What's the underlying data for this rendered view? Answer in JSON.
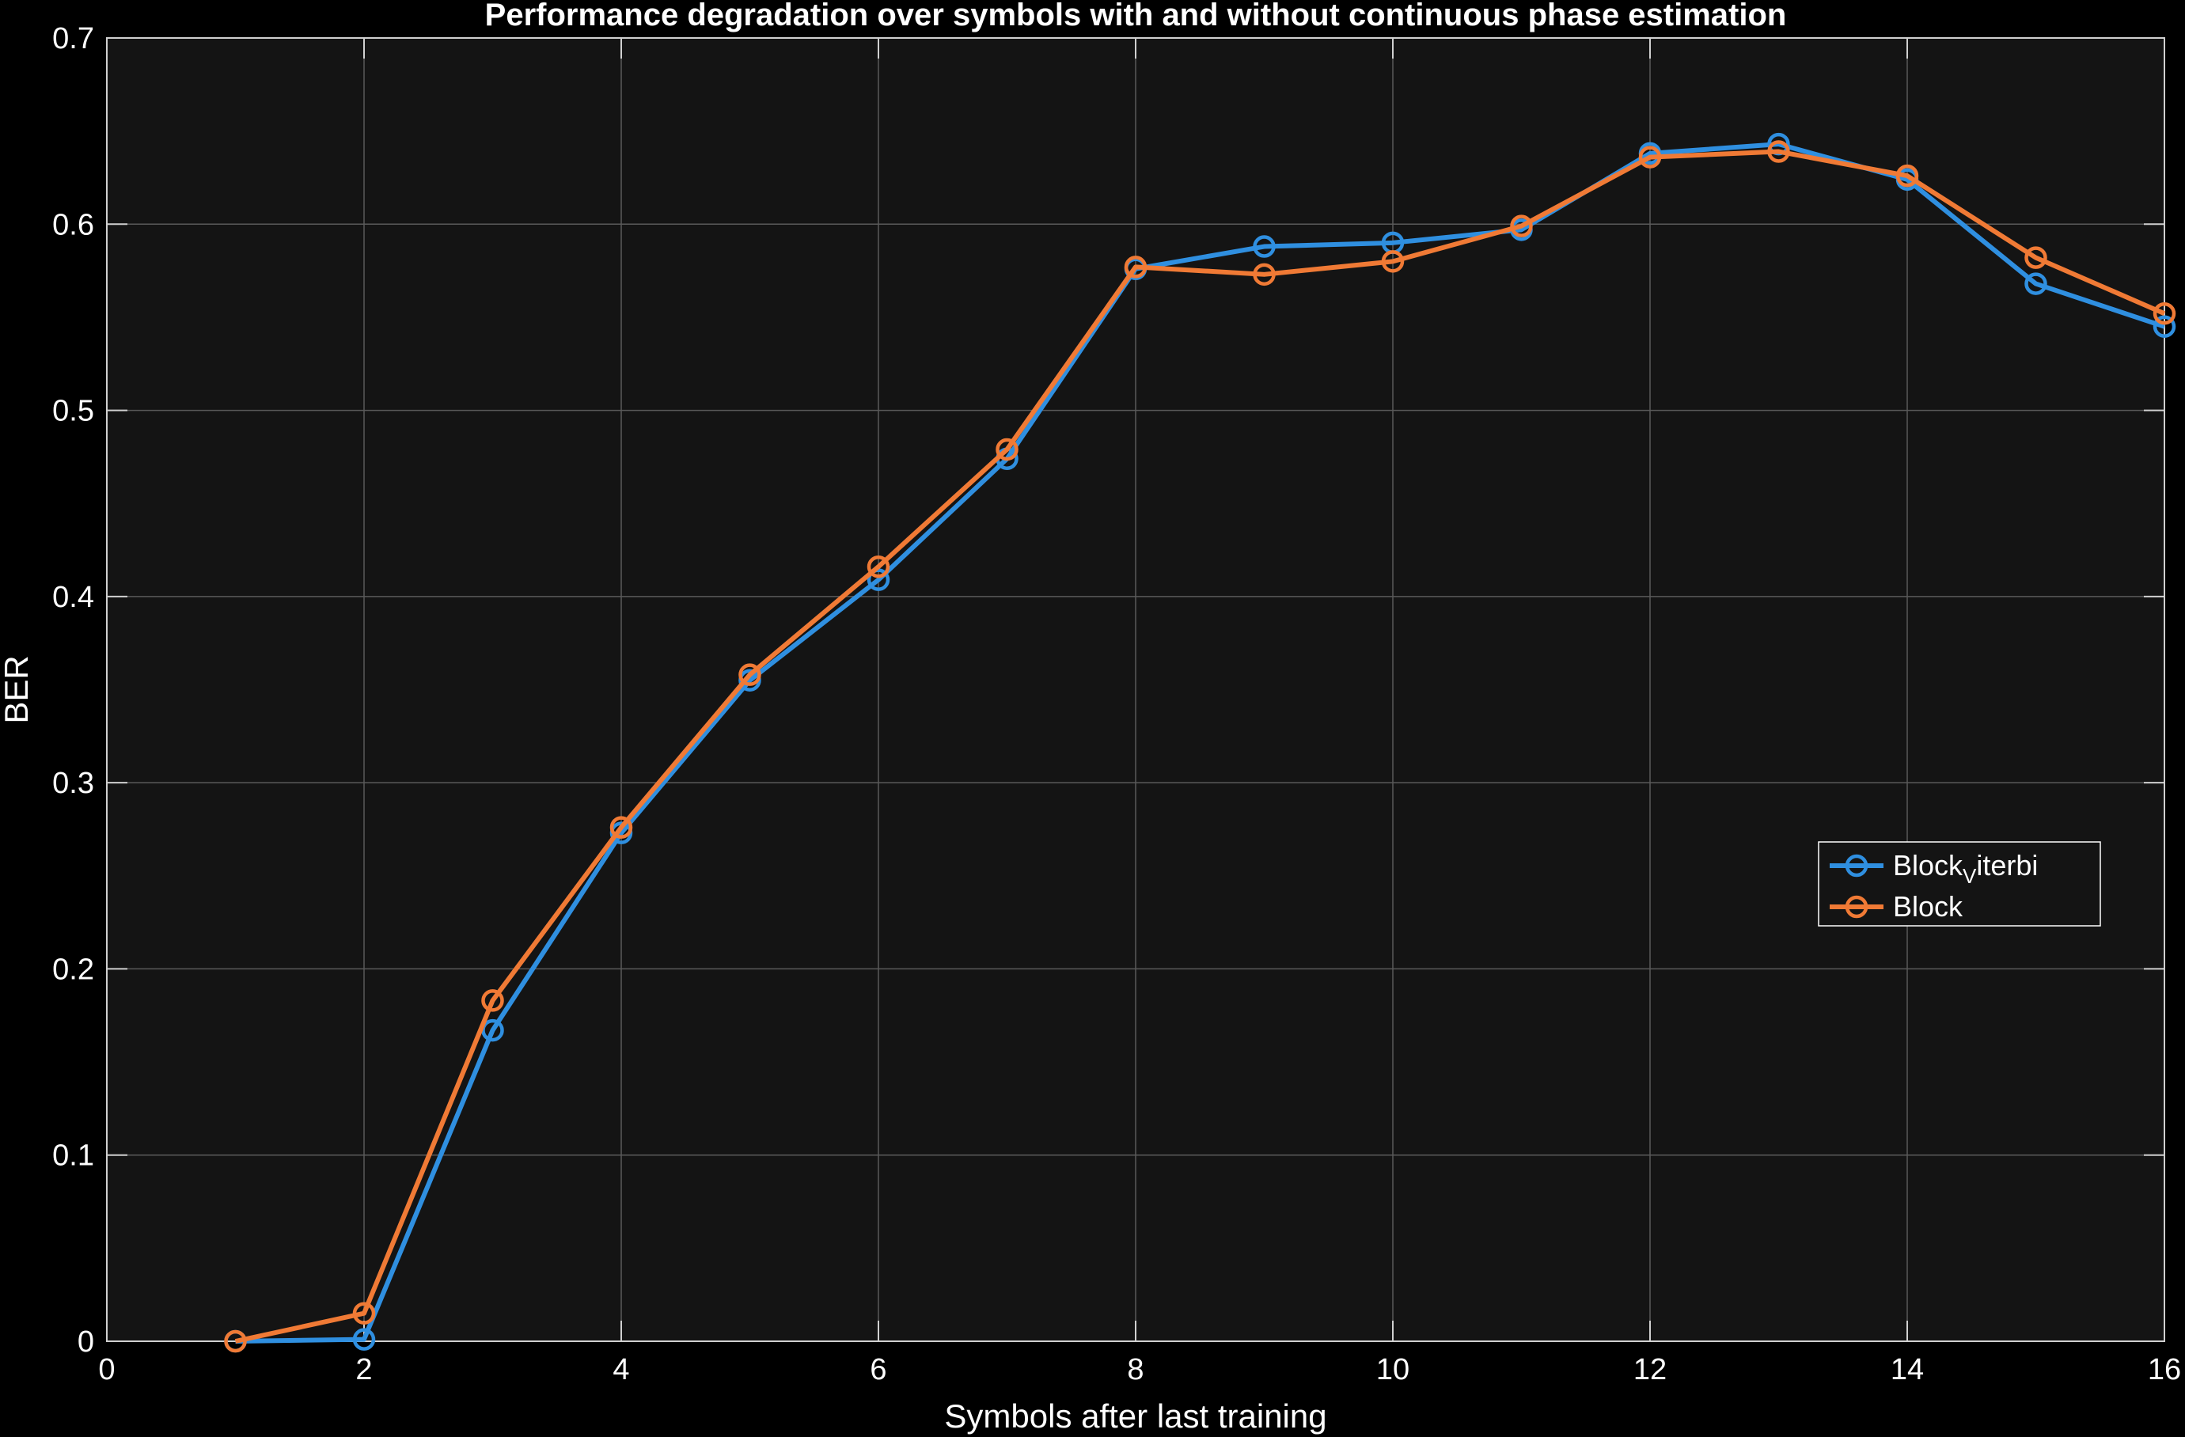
{
  "chart_data": {
    "type": "line",
    "title": "Performance degradation over symbols with and without continuous phase estimation",
    "xlabel": "Symbols after last training",
    "ylabel": "BER",
    "xlim": [
      0,
      16
    ],
    "ylim": [
      0,
      0.7
    ],
    "xticks": [
      0,
      2,
      4,
      6,
      8,
      10,
      12,
      14,
      16
    ],
    "yticks": [
      0,
      0.1,
      0.2,
      0.3,
      0.4,
      0.5,
      0.6,
      0.7
    ],
    "xtick_labels": [
      "0",
      "2",
      "4",
      "6",
      "8",
      "10",
      "12",
      "14",
      "16"
    ],
    "ytick_labels": [
      "0",
      "0.1",
      "0.2",
      "0.3",
      "0.4",
      "0.5",
      "0.6",
      "0.7"
    ],
    "grid": true,
    "legend_position": "right",
    "x": [
      1,
      2,
      3,
      4,
      5,
      6,
      7,
      8,
      9,
      10,
      11,
      12,
      13,
      14,
      15,
      16
    ],
    "series": [
      {
        "name": "Block_Viterbi",
        "legend_main": "Block",
        "legend_sub": "V",
        "legend_rest": "iterbi",
        "color": "#2f8fe0",
        "marker": "circle",
        "values": [
          0.0,
          0.001,
          0.167,
          0.273,
          0.355,
          0.409,
          0.474,
          0.576,
          0.588,
          0.59,
          0.597,
          0.638,
          0.643,
          0.624,
          0.568,
          0.545
        ]
      },
      {
        "name": "Block",
        "legend_main": "Block",
        "legend_sub": "",
        "legend_rest": "",
        "color": "#f07a35",
        "marker": "circle",
        "values": [
          0.0,
          0.015,
          0.183,
          0.276,
          0.358,
          0.416,
          0.479,
          0.577,
          0.573,
          0.58,
          0.599,
          0.636,
          0.639,
          0.626,
          0.582,
          0.552
        ]
      }
    ]
  },
  "style": {
    "figure_background": "#000000",
    "axes_background": "#141414",
    "grid_color": "#5a5a5a",
    "axis_color": "#d0d0d0",
    "text_color": "#ffffff"
  }
}
